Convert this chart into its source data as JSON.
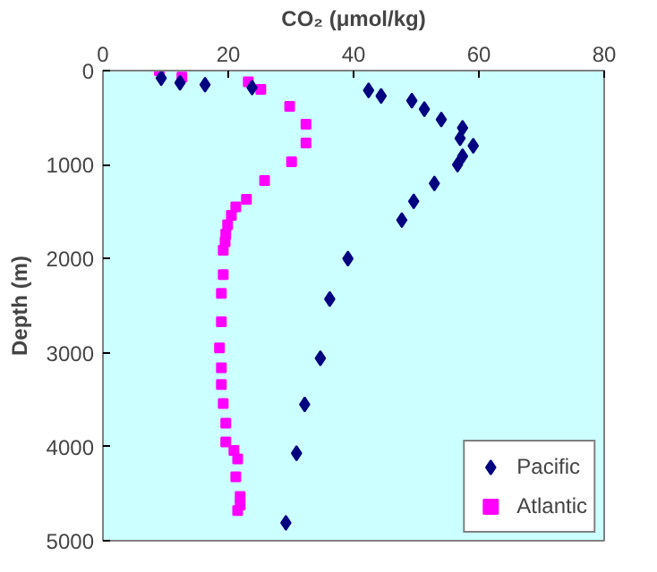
{
  "chart_data": {
    "type": "scatter",
    "xlabel": "CO₂ (μmol/kg)",
    "ylabel": "Depth (m)",
    "xlim": [
      0,
      80
    ],
    "xticks": [
      0,
      20,
      40,
      60,
      80
    ],
    "ylim": [
      5000,
      0
    ],
    "yticks": [
      0,
      1000,
      2000,
      3000,
      4000,
      5000
    ],
    "grid": false,
    "legend": "bottom right",
    "series": [
      {
        "name": "Pacific",
        "color": "#000080",
        "marker": "diamond",
        "x": [
          9.3,
          12.3,
          16.3,
          23.8,
          42.4,
          44.4,
          49.3,
          51.3,
          54.0,
          57.4,
          57.0,
          59.1,
          57.4,
          56.6,
          52.9,
          49.6,
          47.7,
          39.1,
          36.2,
          34.7,
          32.2,
          30.9,
          29.2
        ],
        "values": [
          80,
          130,
          150,
          180,
          210,
          270,
          320,
          410,
          520,
          610,
          720,
          800,
          910,
          1000,
          1200,
          1390,
          1590,
          2000,
          2430,
          3060,
          3550,
          4070,
          4810
        ]
      },
      {
        "name": "Atlantic",
        "color": "#ff00ff",
        "marker": "square",
        "x": [
          9.0,
          12.6,
          23.2,
          25.2,
          29.8,
          32.4,
          32.4,
          30.1,
          25.8,
          22.9,
          21.2,
          20.5,
          19.9,
          19.6,
          19.5,
          19.2,
          19.2,
          18.9,
          18.9,
          18.6,
          18.9,
          18.9,
          19.2,
          19.6,
          19.6,
          20.9,
          21.5,
          21.2,
          21.9,
          21.9,
          21.5
        ],
        "values": [
          0,
          70,
          120,
          200,
          380,
          570,
          770,
          970,
          1170,
          1370,
          1450,
          1540,
          1640,
          1740,
          1820,
          1910,
          2170,
          2370,
          2670,
          2950,
          3160,
          3340,
          3540,
          3750,
          3950,
          4040,
          4130,
          4320,
          4530,
          4620,
          4680
        ]
      }
    ]
  }
}
